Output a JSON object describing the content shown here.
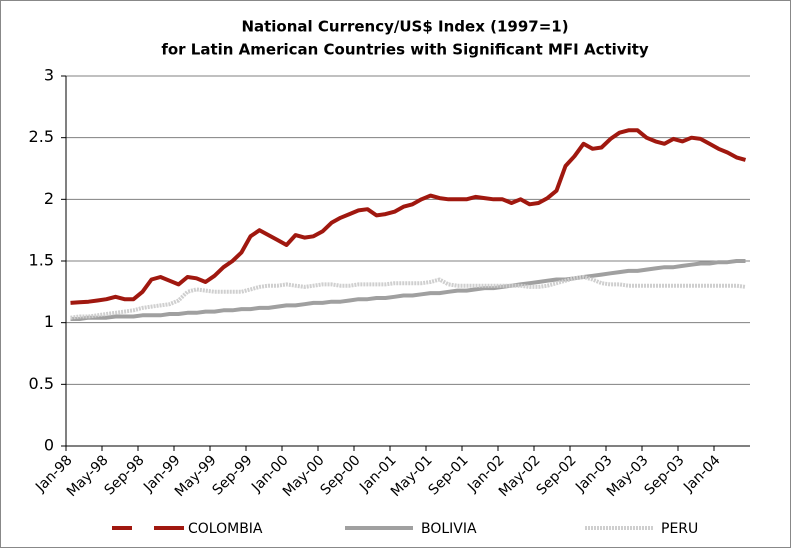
{
  "chart_data": {
    "type": "line",
    "title": [
      "National Currency/US$ Index (1997=1)",
      "for Latin American Countries with Significant MFI Activity"
    ],
    "categories": [
      "Jan-98",
      null,
      null,
      null,
      "May-98",
      null,
      null,
      null,
      "Sep-98",
      null,
      null,
      null,
      "Jan-99",
      null,
      null,
      null,
      "May-99",
      null,
      null,
      null,
      "Sep-99",
      null,
      null,
      null,
      "Jan-00",
      null,
      null,
      null,
      "May-00",
      null,
      null,
      null,
      "Sep-00",
      null,
      null,
      null,
      "Jan-01",
      null,
      null,
      null,
      "May-01",
      null,
      null,
      null,
      "Sep-01",
      null,
      null,
      null,
      "Jan-02",
      null,
      null,
      null,
      "May-02",
      null,
      null,
      null,
      "Sep-02",
      null,
      null,
      null,
      "Jan-03",
      null,
      null,
      null,
      "May-03",
      null,
      null,
      null,
      "Sep-03",
      null,
      null,
      null,
      "Jan-04",
      null,
      null,
      null
    ],
    "series": [
      {
        "name": "COLOMBIA",
        "color": "#a0180f",
        "style": "dashed",
        "values": [
          1.16,
          1.165,
          1.17,
          1.18,
          1.19,
          1.21,
          1.19,
          1.19,
          1.25,
          1.35,
          1.37,
          1.34,
          1.31,
          1.37,
          1.36,
          1.33,
          1.38,
          1.45,
          1.5,
          1.57,
          1.7,
          1.75,
          1.71,
          1.67,
          1.63,
          1.71,
          1.69,
          1.7,
          1.74,
          1.81,
          1.85,
          1.88,
          1.91,
          1.92,
          1.87,
          1.88,
          1.9,
          1.94,
          1.96,
          2.0,
          2.03,
          2.01,
          2.0,
          2.0,
          2.0,
          2.02,
          2.01,
          2.0,
          2.0,
          1.97,
          2.0,
          1.96,
          1.97,
          2.01,
          2.07,
          2.27,
          2.35,
          2.45,
          2.41,
          2.42,
          2.49,
          2.54,
          2.56,
          2.56,
          2.5,
          2.47,
          2.45,
          2.49,
          2.47,
          2.5,
          2.49,
          2.45,
          2.41,
          2.38,
          2.34,
          2.32
        ]
      },
      {
        "name": "BOLIVIA",
        "color": "#a0a0a0",
        "style": "solid",
        "values": [
          1.03,
          1.03,
          1.04,
          1.04,
          1.04,
          1.05,
          1.05,
          1.05,
          1.06,
          1.06,
          1.06,
          1.07,
          1.07,
          1.08,
          1.08,
          1.09,
          1.09,
          1.1,
          1.1,
          1.11,
          1.11,
          1.12,
          1.12,
          1.13,
          1.14,
          1.14,
          1.15,
          1.16,
          1.16,
          1.17,
          1.17,
          1.18,
          1.19,
          1.19,
          1.2,
          1.2,
          1.21,
          1.22,
          1.22,
          1.23,
          1.24,
          1.24,
          1.25,
          1.26,
          1.26,
          1.27,
          1.28,
          1.28,
          1.29,
          1.3,
          1.31,
          1.32,
          1.33,
          1.34,
          1.35,
          1.35,
          1.36,
          1.37,
          1.38,
          1.39,
          1.4,
          1.41,
          1.42,
          1.42,
          1.43,
          1.44,
          1.45,
          1.45,
          1.46,
          1.47,
          1.48,
          1.48,
          1.49,
          1.49,
          1.5,
          1.5
        ]
      },
      {
        "name": "PERU",
        "color": "#cfcfcf",
        "style": "dotted",
        "values": [
          1.04,
          1.05,
          1.05,
          1.06,
          1.07,
          1.08,
          1.09,
          1.1,
          1.12,
          1.13,
          1.14,
          1.15,
          1.18,
          1.25,
          1.27,
          1.26,
          1.25,
          1.25,
          1.25,
          1.25,
          1.27,
          1.29,
          1.3,
          1.3,
          1.31,
          1.3,
          1.29,
          1.3,
          1.31,
          1.31,
          1.3,
          1.3,
          1.31,
          1.31,
          1.31,
          1.31,
          1.32,
          1.32,
          1.32,
          1.32,
          1.33,
          1.35,
          1.31,
          1.3,
          1.3,
          1.3,
          1.3,
          1.3,
          1.3,
          1.3,
          1.3,
          1.29,
          1.29,
          1.3,
          1.32,
          1.34,
          1.36,
          1.37,
          1.35,
          1.32,
          1.31,
          1.31,
          1.3,
          1.3,
          1.3,
          1.3,
          1.3,
          1.3,
          1.3,
          1.3,
          1.3,
          1.3,
          1.3,
          1.3,
          1.3,
          1.29
        ]
      }
    ],
    "ylim": [
      0,
      3
    ],
    "yticks": [
      0,
      0.5,
      1,
      1.5,
      2,
      2.5,
      3
    ],
    "grid": true,
    "legend": "bottom"
  }
}
